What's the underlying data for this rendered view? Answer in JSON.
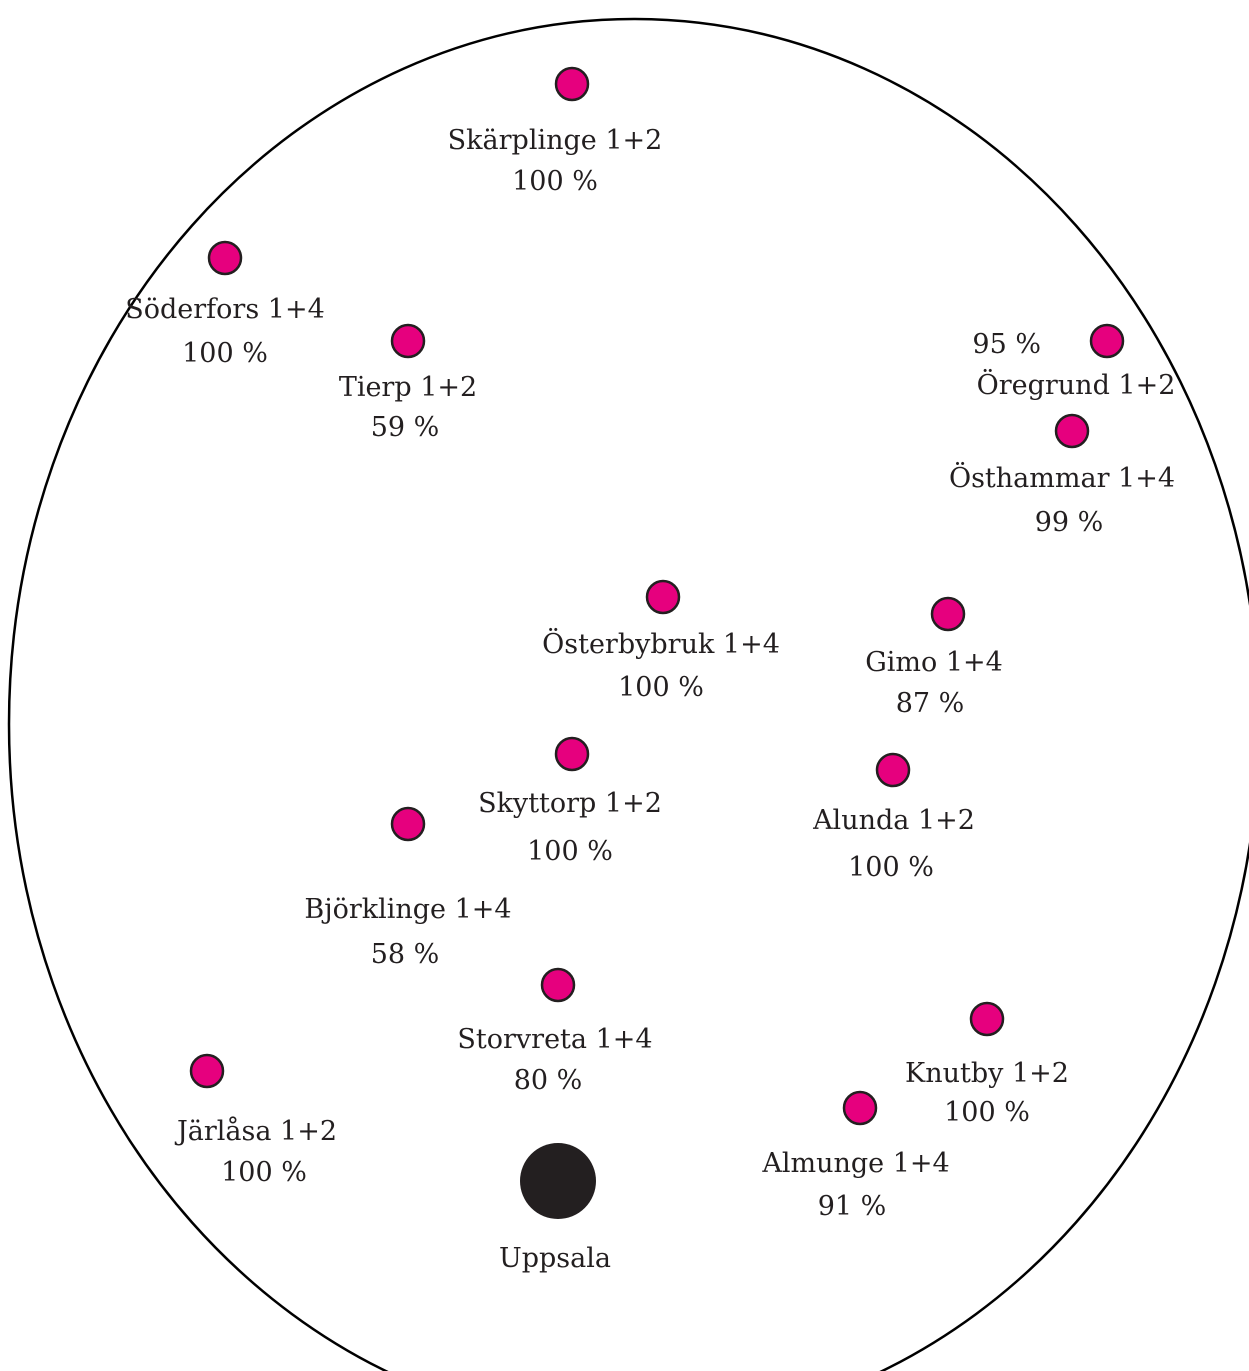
{
  "colors": {
    "site_fill": "#e6007e",
    "site_stroke": "#231f20",
    "hub_fill": "#231f20",
    "outline": "#000000"
  },
  "hub": {
    "name": "Uppsala"
  },
  "sites": [
    {
      "id": "skarplinge",
      "name": "Skärplinge 1+2",
      "percent": "100 %"
    },
    {
      "id": "soderfors",
      "name": "Söderfors 1+4",
      "percent": "100 %"
    },
    {
      "id": "tierp",
      "name": "Tierp 1+2",
      "percent": "59 %"
    },
    {
      "id": "oregrund",
      "name": "Öregrund 1+2",
      "percent": "95 %"
    },
    {
      "id": "osthammar",
      "name": "Östhammar 1+4",
      "percent": "99 %"
    },
    {
      "id": "osterbybruk",
      "name": "Österbybruk 1+4",
      "percent": "100 %"
    },
    {
      "id": "gimo",
      "name": "Gimo 1+4",
      "percent": "87 %"
    },
    {
      "id": "skyttorp",
      "name": "Skyttorp 1+2",
      "percent": "100 %"
    },
    {
      "id": "alunda",
      "name": "Alunda 1+2",
      "percent": "100 %"
    },
    {
      "id": "bjorklinge",
      "name": "Björklinge 1+4",
      "percent": "58 %"
    },
    {
      "id": "storvreta",
      "name": "Storvreta 1+4",
      "percent": "80 %"
    },
    {
      "id": "knutby",
      "name": "Knutby 1+2",
      "percent": "100 %"
    },
    {
      "id": "jarlasa",
      "name": "Järlåsa 1+2",
      "percent": "100 %"
    },
    {
      "id": "almunge",
      "name": "Almunge 1+4",
      "percent": "91 %"
    }
  ]
}
